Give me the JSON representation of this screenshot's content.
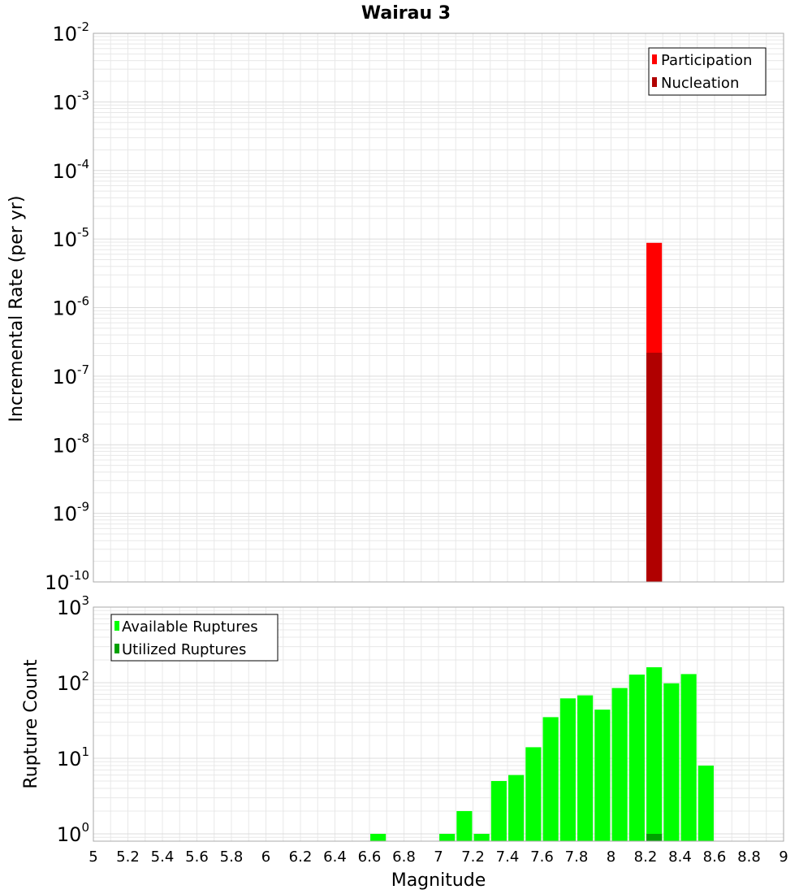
{
  "title": "Wairau 3",
  "xlabel": "Magnitude",
  "colors": {
    "participation": "#ff0000",
    "nucleation": "#b00000",
    "available": "#00ff00",
    "utilized": "#00a000",
    "grid": "#e8e8e8",
    "frame": "#aaaaaa"
  },
  "chart_data": [
    {
      "type": "bar",
      "title": "Wairau 3",
      "xlabel": "Magnitude",
      "ylabel": "Incremental Rate (per yr)",
      "yscale": "log",
      "xlim": [
        5,
        9
      ],
      "ylim": [
        1e-10,
        0.01
      ],
      "y_ticks": [
        {
          "base": "10",
          "exp": "-2",
          "value": 0.01
        },
        {
          "base": "10",
          "exp": "-3",
          "value": 0.001
        },
        {
          "base": "10",
          "exp": "-4",
          "value": 0.0001
        },
        {
          "base": "10",
          "exp": "-5",
          "value": 1e-05
        },
        {
          "base": "10",
          "exp": "-6",
          "value": 1e-06
        },
        {
          "base": "10",
          "exp": "-7",
          "value": 1e-07
        },
        {
          "base": "10",
          "exp": "-8",
          "value": 1e-08
        },
        {
          "base": "10",
          "exp": "-9",
          "value": 1e-09
        },
        {
          "base": "10",
          "exp": "-10",
          "value": 1e-10
        }
      ],
      "legend": {
        "placement": "top-right",
        "entries": [
          "Participation",
          "Nucleation"
        ]
      },
      "series": [
        {
          "name": "Participation",
          "x": [
            8.25
          ],
          "values": [
            8.8e-06
          ]
        },
        {
          "name": "Nucleation",
          "x": [
            8.25
          ],
          "values": [
            2.2e-07
          ]
        }
      ]
    },
    {
      "type": "bar",
      "xlabel": "Magnitude",
      "ylabel": "Rupture Count",
      "yscale": "log",
      "xlim": [
        5,
        9
      ],
      "ylim": [
        0.8,
        1000
      ],
      "y_ticks": [
        {
          "base": "10",
          "exp": "3",
          "value": 1000
        },
        {
          "base": "10",
          "exp": "2",
          "value": 100
        },
        {
          "base": "10",
          "exp": "1",
          "value": 10
        },
        {
          "base": "10",
          "exp": "0",
          "value": 1
        }
      ],
      "x_ticks": [
        "5",
        "5.2",
        "5.4",
        "5.6",
        "5.8",
        "6",
        "6.2",
        "6.4",
        "6.6",
        "6.8",
        "7",
        "7.2",
        "7.4",
        "7.6",
        "7.8",
        "8",
        "8.2",
        "8.4",
        "8.6",
        "8.8",
        "9"
      ],
      "legend": {
        "placement": "top-left",
        "entries": [
          "Available Ruptures",
          "Utilized Ruptures"
        ]
      },
      "series": [
        {
          "name": "Available Ruptures",
          "x": [
            6.65,
            7.05,
            7.15,
            7.25,
            7.35,
            7.45,
            7.55,
            7.65,
            7.75,
            7.85,
            7.95,
            8.05,
            8.15,
            8.25,
            8.35,
            8.45,
            8.55
          ],
          "values": [
            1,
            1,
            2,
            1,
            5,
            6,
            14,
            35,
            62,
            68,
            44,
            85,
            128,
            160,
            98,
            130,
            8
          ]
        },
        {
          "name": "Utilized Ruptures",
          "x": [
            8.25
          ],
          "values": [
            1
          ]
        }
      ]
    }
  ]
}
